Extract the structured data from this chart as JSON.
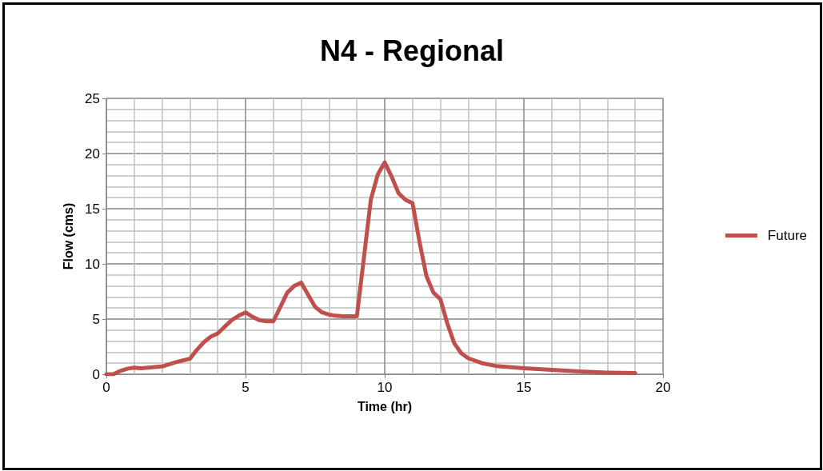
{
  "chart_data": {
    "type": "line",
    "title": "N4 - Regional",
    "xlabel": "Time (hr)",
    "ylabel": "Flow (cms)",
    "x": [
      0,
      0.25,
      0.5,
      0.75,
      1,
      1.25,
      1.5,
      1.75,
      2,
      2.25,
      2.5,
      2.75,
      3,
      3.25,
      3.5,
      3.75,
      4,
      4.25,
      4.5,
      4.75,
      5,
      5.25,
      5.5,
      5.75,
      6,
      6.25,
      6.5,
      6.75,
      7,
      7.25,
      7.5,
      7.75,
      8,
      8.25,
      8.5,
      8.75,
      9,
      9.25,
      9.5,
      9.75,
      10,
      10.25,
      10.5,
      10.75,
      11,
      11.25,
      11.5,
      11.75,
      12,
      12.25,
      12.5,
      12.75,
      13,
      13.5,
      14,
      15,
      16,
      17,
      18,
      19
    ],
    "series": [
      {
        "name": "Future",
        "color": "#c0504d",
        "values": [
          0,
          0,
          0.3,
          0.5,
          0.6,
          0.55,
          0.6,
          0.65,
          0.7,
          0.9,
          1.1,
          1.25,
          1.4,
          2.2,
          2.9,
          3.4,
          3.7,
          4.3,
          4.9,
          5.3,
          5.6,
          5.2,
          4.9,
          4.8,
          4.8,
          6.1,
          7.4,
          8.0,
          8.3,
          7.2,
          6.1,
          5.6,
          5.4,
          5.3,
          5.25,
          5.25,
          5.25,
          10.5,
          15.8,
          18.1,
          19.2,
          17.9,
          16.4,
          15.8,
          15.5,
          12.0,
          8.9,
          7.4,
          6.8,
          4.6,
          2.8,
          1.9,
          1.45,
          1.0,
          0.75,
          0.55,
          0.4,
          0.25,
          0.15,
          0.1
        ]
      }
    ],
    "xlim": [
      0,
      20
    ],
    "xticks": [
      0,
      5,
      10,
      15,
      20
    ],
    "ylim": [
      0,
      25
    ],
    "yticks": [
      0,
      5,
      10,
      15,
      20,
      25
    ],
    "grid": true,
    "legend": "right",
    "marker": "none",
    "line_style": "solid"
  }
}
